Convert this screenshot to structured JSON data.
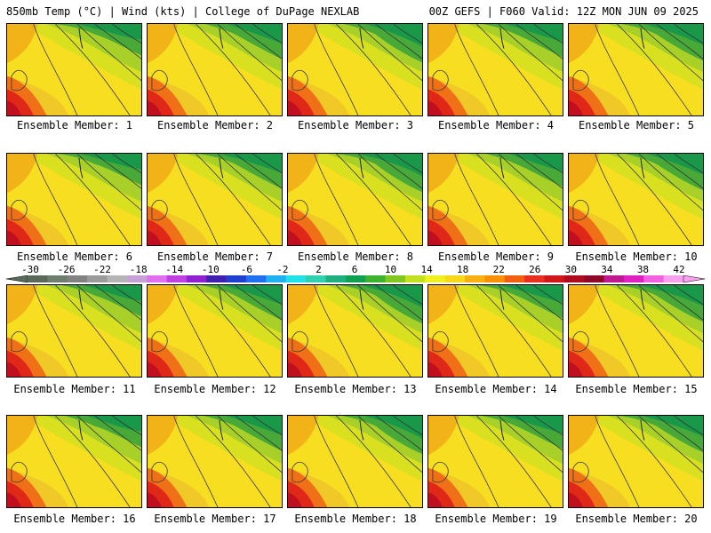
{
  "header": {
    "left": "850mb Temp (°C) | Wind (kts) | College of DuPage NEXLAB",
    "right": "00Z GEFS | F060 Valid: 12Z MON JUN 09 2025"
  },
  "members": [
    {
      "label": "Ensemble Member: 1"
    },
    {
      "label": "Ensemble Member: 2"
    },
    {
      "label": "Ensemble Member: 3"
    },
    {
      "label": "Ensemble Member: 4"
    },
    {
      "label": "Ensemble Member: 5"
    },
    {
      "label": "Ensemble Member: 6"
    },
    {
      "label": "Ensemble Member: 7"
    },
    {
      "label": "Ensemble Member: 8"
    },
    {
      "label": "Ensemble Member: 9"
    },
    {
      "label": "Ensemble Member: 10"
    },
    {
      "label": "Ensemble Member: 11"
    },
    {
      "label": "Ensemble Member: 12"
    },
    {
      "label": "Ensemble Member: 13"
    },
    {
      "label": "Ensemble Member: 14"
    },
    {
      "label": "Ensemble Member: 15"
    },
    {
      "label": "Ensemble Member: 16"
    },
    {
      "label": "Ensemble Member: 17"
    },
    {
      "label": "Ensemble Member: 18"
    },
    {
      "label": "Ensemble Member: 19"
    },
    {
      "label": "Ensemble Member: 20"
    }
  ],
  "colorbar": {
    "ticks": [
      "-30",
      "-26",
      "-22",
      "-18",
      "-14",
      "-10",
      "-6",
      "-2",
      "2",
      "6",
      "10",
      "14",
      "18",
      "22",
      "26",
      "30",
      "34",
      "38",
      "42"
    ],
    "colors": [
      "#5a6a5a",
      "#6e7e6e",
      "#828282",
      "#9a9a9a",
      "#b4b4b4",
      "#c8a0d8",
      "#e070f0",
      "#c040e0",
      "#9020d0",
      "#4020b0",
      "#2040d0",
      "#2070f0",
      "#20b0f0",
      "#20e0e8",
      "#30d0b0",
      "#20b080",
      "#10a050",
      "#40b030",
      "#80c820",
      "#c0e020",
      "#f0f020",
      "#f8d818",
      "#f8b010",
      "#f89008",
      "#f06010",
      "#e83020",
      "#d01818",
      "#b00c20",
      "#900828",
      "#c01890",
      "#e020c0",
      "#f060e0",
      "#f8a0f0"
    ]
  }
}
